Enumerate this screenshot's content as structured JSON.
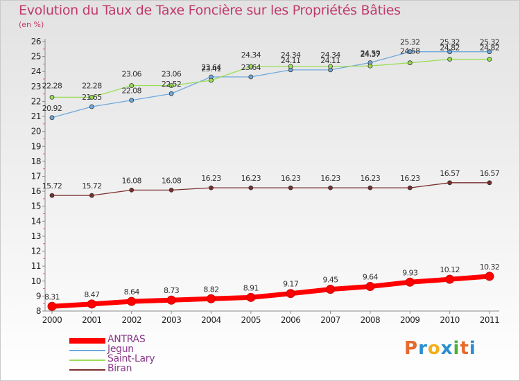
{
  "title": "Evolution du Taux de Taxe Foncière sur les Propriétés Bâties",
  "unit": "(en %)",
  "chart_data": {
    "type": "line",
    "title": "Evolution du Taux de Taxe Foncière sur les Propriétés Bâties",
    "ylabel": "(en %)",
    "xlabel": "",
    "x": [
      "2000",
      "2001",
      "2002",
      "2003",
      "2004",
      "2005",
      "2006",
      "2007",
      "2008",
      "2009",
      "2010",
      "2011"
    ],
    "ylim": [
      8,
      26
    ],
    "yticks": [
      "8",
      "9",
      "10",
      "11",
      "12",
      "13",
      "14",
      "15",
      "16",
      "17",
      "18",
      "19",
      "20",
      "21",
      "22",
      "23",
      "24",
      "25",
      "26"
    ],
    "grid": false,
    "legend_position": "bottom-left",
    "series": [
      {
        "name": "ANTRAS",
        "color": "#ff0000",
        "values": [
          8.31,
          8.47,
          8.64,
          8.73,
          8.82,
          8.91,
          9.17,
          9.45,
          9.64,
          9.93,
          10.12,
          10.32
        ],
        "labels": [
          "8.31",
          "8.47",
          "8.64",
          "8.73",
          "8.82",
          "8.91",
          "9.17",
          "9.45",
          "9.64",
          "9.93",
          "10.12",
          "10.32"
        ]
      },
      {
        "name": "Jegun",
        "color": "#6fa8dc",
        "values": [
          20.92,
          21.65,
          22.08,
          22.52,
          23.64,
          23.64,
          24.11,
          24.11,
          24.59,
          25.32,
          25.32,
          25.32
        ],
        "labels": [
          "20.92",
          "21.65",
          "22.08",
          "22.52",
          "23.64",
          "23.64",
          "24.11",
          "24.11",
          "24.59",
          "25.32",
          "25.32",
          "25.32"
        ]
      },
      {
        "name": "Saint-Lary",
        "color": "#99dd55",
        "values": [
          22.28,
          22.28,
          23.06,
          23.06,
          23.41,
          24.34,
          24.34,
          24.34,
          24.37,
          24.58,
          24.82,
          24.82
        ],
        "labels": [
          "22.28",
          "22.28",
          "23.06",
          "23.06",
          "23.41",
          "24.34",
          "24.34",
          "24.34",
          "24.37",
          "24.58",
          "24.82",
          "24.82"
        ]
      },
      {
        "name": "Biran",
        "color": "#7a2e2e",
        "values": [
          15.72,
          15.72,
          16.08,
          16.08,
          16.23,
          16.23,
          16.23,
          16.23,
          16.23,
          16.23,
          16.57,
          16.57
        ],
        "labels": [
          "15.72",
          "15.72",
          "16.08",
          "16.08",
          "16.23",
          "16.23",
          "16.23",
          "16.23",
          "16.23",
          "16.23",
          "16.57",
          "16.57"
        ]
      }
    ]
  },
  "logo": {
    "text": "Proxiti",
    "colors": [
      "#e8692c",
      "#2a8fd1",
      "#f2b01e",
      "#2a8fd1",
      "#4caf3a",
      "#e8692c",
      "#2a8fd1"
    ]
  }
}
